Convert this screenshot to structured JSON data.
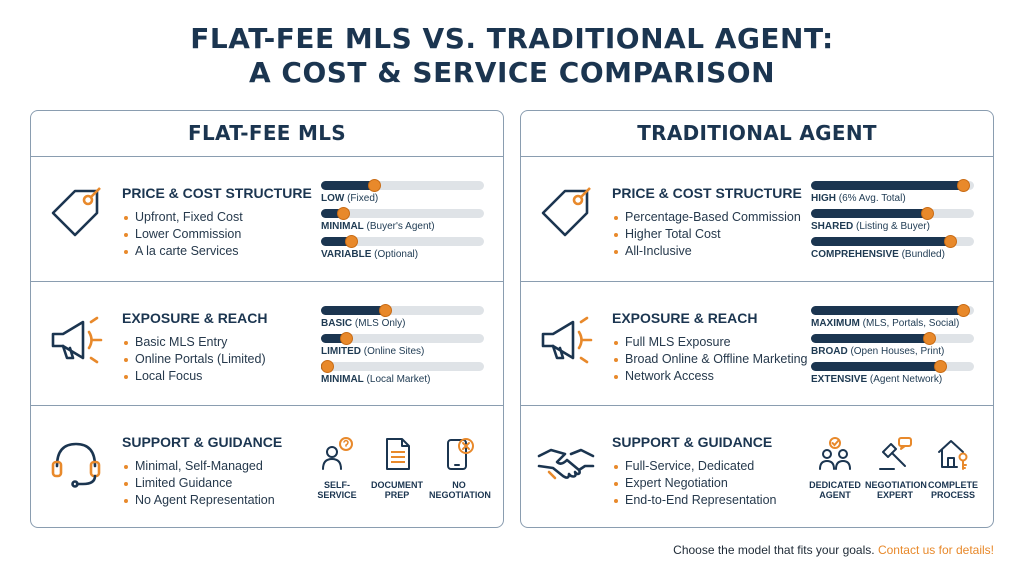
{
  "title": {
    "line1": "FLAT-FEE MLS VS. TRADITIONAL AGENT:",
    "line2": "A COST & SERVICE COMPARISON"
  },
  "colors": {
    "navy": "#1b3550",
    "accent": "#e8892b",
    "track": "#dfe3e7",
    "border": "#8a9db0"
  },
  "panels": [
    {
      "title": "FLAT-FEE MLS",
      "rows": [
        {
          "icon": "price-tag-icon",
          "heading": "PRICE & COST STRUCTURE",
          "bullets": [
            "Upfront, Fixed Cost",
            "Lower Commission",
            "A la carte Services"
          ],
          "meters": [
            {
              "level": 0.33,
              "label_bold": "LOW",
              "label_rest": " (Fixed)"
            },
            {
              "level": 0.14,
              "label_bold": "MINIMAL",
              "label_rest": " (Buyer's Agent)"
            },
            {
              "level": 0.19,
              "label_bold": "VARIABLE",
              "label_rest": " (Optional)"
            }
          ]
        },
        {
          "icon": "megaphone-icon",
          "heading": "EXPOSURE & REACH",
          "bullets": [
            "Basic MLS Entry",
            "Online Portals (Limited)",
            "Local Focus"
          ],
          "meters": [
            {
              "level": 0.4,
              "label_bold": "BASIC",
              "label_rest": " (MLS Only)"
            },
            {
              "level": 0.16,
              "label_bold": "LIMITED",
              "label_rest": " (Online Sites)"
            },
            {
              "level": 0.04,
              "label_bold": "MINIMAL",
              "label_rest": " (Local Market)"
            }
          ]
        },
        {
          "icon": "headset-icon",
          "heading": "SUPPORT & GUIDANCE",
          "bullets": [
            "Minimal, Self-Managed",
            "Limited Guidance",
            "No Agent Representation"
          ],
          "features": [
            {
              "icon": "self-service-icon",
              "line1": "SELF-",
              "line2": "SERVICE"
            },
            {
              "icon": "document-icon",
              "line1": "DOCUMENT",
              "line2": "PREP"
            },
            {
              "icon": "no-negotiation-icon",
              "line1": "NO",
              "line2": "NEGOTIATION"
            }
          ]
        }
      ]
    },
    {
      "title": "TRADITIONAL AGENT",
      "rows": [
        {
          "icon": "price-tag-icon",
          "heading": "PRICE & COST STRUCTURE",
          "bullets": [
            "Percentage-Based Commission",
            "Higher Total Cost",
            "All-Inclusive"
          ],
          "meters": [
            {
              "level": 0.94,
              "label_bold": "HIGH",
              "label_rest": " (6% Avg. Total)"
            },
            {
              "level": 0.72,
              "label_bold": "SHARED",
              "label_rest": " (Listing & Buyer)"
            },
            {
              "level": 0.86,
              "label_bold": "COMPREHENSIVE",
              "label_rest": " (Bundled)"
            }
          ]
        },
        {
          "icon": "megaphone-icon",
          "heading": "EXPOSURE & REACH",
          "bullets": [
            "Full MLS Exposure",
            "Broad Online & Offline Marketing",
            "Network Access"
          ],
          "meters": [
            {
              "level": 0.94,
              "label_bold": "MAXIMUM",
              "label_rest": " (MLS, Portals, Social)"
            },
            {
              "level": 0.73,
              "label_bold": "BROAD",
              "label_rest": " (Open Houses, Print)"
            },
            {
              "level": 0.8,
              "label_bold": "EXTENSIVE",
              "label_rest": " (Agent Network)"
            }
          ]
        },
        {
          "icon": "handshake-icon",
          "heading": "SUPPORT & GUIDANCE",
          "bullets": [
            "Full-Service, Dedicated",
            "Expert Negotiation",
            "End-to-End Representation"
          ],
          "features": [
            {
              "icon": "dedicated-agent-icon",
              "line1": "DEDICATED",
              "line2": "AGENT"
            },
            {
              "icon": "gavel-icon",
              "line1": "NEGOTIATION",
              "line2": "EXPERT"
            },
            {
              "icon": "house-key-icon",
              "line1": "COMPLETE",
              "line2": "PROCESS"
            }
          ]
        }
      ]
    }
  ],
  "footer": {
    "text": "Choose the model that fits your goals. ",
    "link": "Contact us for details!"
  }
}
